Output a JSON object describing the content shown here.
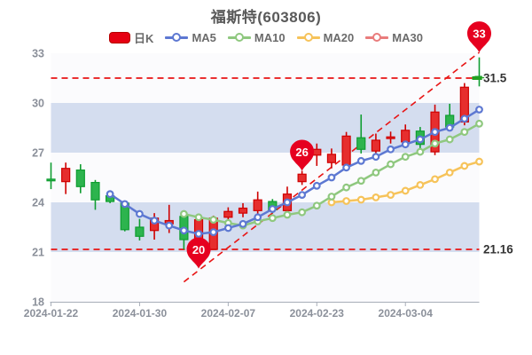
{
  "chart_data": {
    "type": "candlestick",
    "title": "福斯特(603806)",
    "stock_name": "福斯特",
    "stock_code": "603806",
    "legend": [
      {
        "label": "日K",
        "color": "#e60012",
        "swatch": "candle"
      },
      {
        "label": "MA5",
        "color": "#5d78d2",
        "swatch": "line"
      },
      {
        "label": "MA10",
        "color": "#8fc87f",
        "swatch": "line"
      },
      {
        "label": "MA20",
        "color": "#f6c35a",
        "swatch": "line"
      },
      {
        "label": "MA30",
        "color": "#e97c7c",
        "swatch": "line"
      }
    ],
    "ylim": [
      18,
      33
    ],
    "y_ticks": [
      18,
      21,
      24,
      27,
      30,
      33
    ],
    "x_ticks": [
      {
        "index": 0,
        "label": "2024-01-22"
      },
      {
        "index": 6,
        "label": "2024-01-30"
      },
      {
        "index": 12,
        "label": "2024-02-07"
      },
      {
        "index": 18,
        "label": "2024-02-23"
      },
      {
        "index": 24,
        "label": "2024-03-04"
      }
    ],
    "stripe_bands": [
      [
        27,
        30
      ],
      [
        21,
        24
      ]
    ],
    "candles": [
      {
        "o": 25.4,
        "h": 26.4,
        "l": 24.8,
        "c": 25.3
      },
      {
        "o": 25.25,
        "h": 26.4,
        "l": 24.5,
        "c": 26.05
      },
      {
        "o": 25.95,
        "h": 26.3,
        "l": 24.55,
        "c": 24.95
      },
      {
        "o": 25.2,
        "h": 25.35,
        "l": 23.55,
        "c": 24.15
      },
      {
        "o": 24.4,
        "h": 24.7,
        "l": 23.95,
        "c": 24.05
      },
      {
        "o": 23.95,
        "h": 24.05,
        "l": 22.25,
        "c": 22.35
      },
      {
        "o": 22.5,
        "h": 23.0,
        "l": 21.7,
        "c": 21.95
      },
      {
        "o": 22.3,
        "h": 23.35,
        "l": 21.75,
        "c": 23.05
      },
      {
        "o": 22.7,
        "h": 23.85,
        "l": 22.15,
        "c": 22.9
      },
      {
        "o": 23.15,
        "h": 23.45,
        "l": 21.16,
        "c": 21.75
      },
      {
        "o": 21.3,
        "h": 23.05,
        "l": 21.2,
        "c": 22.95
      },
      {
        "o": 21.16,
        "h": 23.2,
        "l": 21.16,
        "c": 23.05
      },
      {
        "o": 23.1,
        "h": 23.7,
        "l": 22.85,
        "c": 23.45
      },
      {
        "o": 23.35,
        "h": 23.95,
        "l": 23.1,
        "c": 23.65
      },
      {
        "o": 23.5,
        "h": 24.65,
        "l": 23.1,
        "c": 24.15
      },
      {
        "o": 24.05,
        "h": 24.2,
        "l": 23.35,
        "c": 23.55
      },
      {
        "o": 23.5,
        "h": 24.95,
        "l": 23.1,
        "c": 24.5
      },
      {
        "o": 25.25,
        "h": 25.9,
        "l": 25.05,
        "c": 25.7
      },
      {
        "o": 26.85,
        "h": 27.55,
        "l": 26.2,
        "c": 27.2
      },
      {
        "o": 26.4,
        "h": 27.25,
        "l": 26.05,
        "c": 26.9
      },
      {
        "o": 26.25,
        "h": 28.25,
        "l": 26.1,
        "c": 28.0
      },
      {
        "o": 27.9,
        "h": 29.3,
        "l": 26.95,
        "c": 27.2
      },
      {
        "o": 27.1,
        "h": 28.15,
        "l": 26.75,
        "c": 27.75
      },
      {
        "o": 27.85,
        "h": 28.27,
        "l": 27.55,
        "c": 27.95
      },
      {
        "o": 27.65,
        "h": 28.7,
        "l": 27.5,
        "c": 28.35
      },
      {
        "o": 28.3,
        "h": 28.55,
        "l": 27.2,
        "c": 27.5
      },
      {
        "o": 27.05,
        "h": 29.9,
        "l": 26.85,
        "c": 29.45
      },
      {
        "o": 29.25,
        "h": 29.95,
        "l": 28.35,
        "c": 28.55
      },
      {
        "o": 28.85,
        "h": 31.2,
        "l": 28.65,
        "c": 30.95
      },
      {
        "o": 31.6,
        "h": 32.75,
        "l": 31.0,
        "c": 31.5
      }
    ],
    "moving_averages": [
      {
        "name": "MA5",
        "color": "#5d78d2",
        "start_index": 4,
        "values": [
          24.5,
          23.9,
          23.3,
          22.9,
          22.6,
          22.3,
          22.1,
          22.2,
          22.45,
          22.7,
          23.1,
          23.6,
          24.0,
          24.45,
          25.0,
          25.5,
          26.1,
          26.5,
          26.75,
          27.2,
          27.5,
          27.8,
          28.25,
          28.5,
          29.05,
          29.6
        ]
      },
      {
        "name": "MA10",
        "color": "#8fc87f",
        "start_index": 9,
        "values": [
          23.3,
          23.1,
          22.95,
          22.75,
          22.6,
          22.85,
          23.05,
          23.25,
          23.4,
          23.8,
          24.35,
          24.9,
          25.3,
          25.8,
          26.3,
          26.75,
          27.05,
          27.55,
          27.8,
          28.25,
          28.75
        ]
      },
      {
        "name": "MA20",
        "color": "#f6c35a",
        "start_index": 19,
        "values": [
          24.0,
          24.08,
          24.16,
          24.3,
          24.45,
          24.7,
          25.05,
          25.4,
          25.8,
          26.2,
          26.46
        ]
      },
      {
        "name": "MA30",
        "color": "#e97c7c",
        "start_index": 29,
        "values": []
      }
    ],
    "markers": [
      {
        "label": "20",
        "index": 10,
        "price": 20.0
      },
      {
        "label": "26",
        "index": 17,
        "price": 25.9
      },
      {
        "label": "33",
        "index": 29,
        "price": 33.05
      }
    ],
    "ref_lines": [
      {
        "label": "31.5",
        "value": 31.5,
        "orientation": "horizontal"
      },
      {
        "label": "21.16",
        "value": 21.16,
        "orientation": "horizontal"
      }
    ],
    "trend_line": {
      "from_index": 9,
      "from_value": 19.2,
      "to_index": 29,
      "to_value": 33.05
    },
    "latest_price_tick": {
      "value": 31.5,
      "color": "#22a122"
    },
    "colors": {
      "up_fill": "#e62e2e",
      "up_border": "#cf0000",
      "down_fill": "#2db44e",
      "down_border": "#0f9d31",
      "band": "#d4ddef",
      "plot_bg": "#fbfbfd",
      "ref_line": "#e81414",
      "balloon": "#e6001f",
      "balloon_text": "#ffffff",
      "axis_line": "#a7adb8",
      "axis_text": "#8b909a",
      "title_text": "#595959",
      "legend_text": "#6b6b6b",
      "price_label_text": "#333333"
    }
  }
}
